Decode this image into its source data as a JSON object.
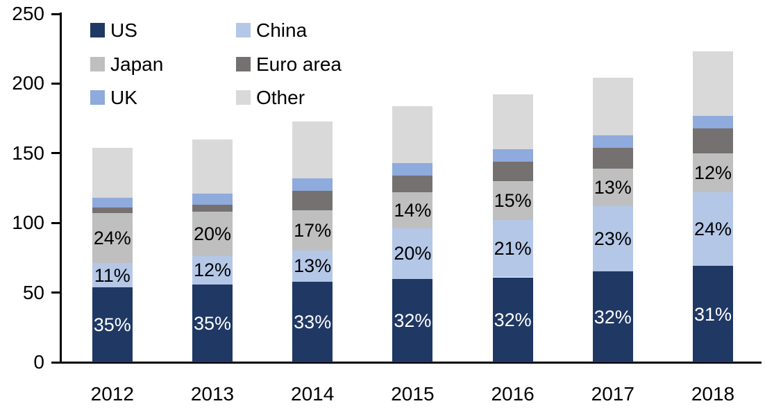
{
  "chart_data": {
    "type": "bar",
    "stacked": true,
    "title": "",
    "xlabel": "",
    "ylabel": "",
    "grid": false,
    "categories": [
      "2012",
      "2013",
      "2014",
      "2015",
      "2016",
      "2017",
      "2018"
    ],
    "series": [
      {
        "name": "US",
        "color": "#1F3864",
        "label_color": "#ffffff",
        "values": [
          54,
          56,
          58,
          60,
          61,
          65,
          69
        ],
        "labels": [
          "35%",
          "35%",
          "33%",
          "32%",
          "32%",
          "32%",
          "31%"
        ]
      },
      {
        "name": "China",
        "color": "#B4C7E7",
        "label_color": "#000000",
        "values": [
          17,
          20,
          22,
          36,
          41,
          47,
          53
        ],
        "labels": [
          "11%",
          "12%",
          "13%",
          "20%",
          "21%",
          "23%",
          "24%"
        ]
      },
      {
        "name": "Japan",
        "color": "#BFBFBF",
        "label_color": "#000000",
        "values": [
          36,
          32,
          29,
          26,
          28,
          27,
          28
        ],
        "labels": [
          "24%",
          "20%",
          "17%",
          "14%",
          "15%",
          "13%",
          "12%"
        ]
      },
      {
        "name": "Euro area",
        "color": "#767171",
        "label_color": "#000000",
        "values": [
          4,
          5,
          14,
          12,
          14,
          15,
          18
        ],
        "labels": null
      },
      {
        "name": "UK",
        "color": "#8FAADC",
        "label_color": "#000000",
        "values": [
          7,
          8,
          9,
          9,
          9,
          9,
          9
        ],
        "labels": null
      },
      {
        "name": "Other",
        "color": "#D9D9D9",
        "label_color": "#000000",
        "values": [
          36,
          39,
          41,
          41,
          39,
          41,
          46
        ],
        "labels": null
      }
    ],
    "totals": [
      154,
      160,
      173,
      184,
      192,
      204,
      223
    ],
    "y_axis": {
      "min": 0,
      "max": 250,
      "tick_step": 50,
      "tick_labels": [
        "0",
        "50",
        "100",
        "150",
        "200",
        "250"
      ]
    },
    "legend": {
      "position": "top-left",
      "columns": [
        [
          "US",
          "Japan",
          "UK"
        ],
        [
          "China",
          "Euro area",
          "Other"
        ]
      ]
    },
    "axis_color": "#000000",
    "text_color": "#000000"
  }
}
